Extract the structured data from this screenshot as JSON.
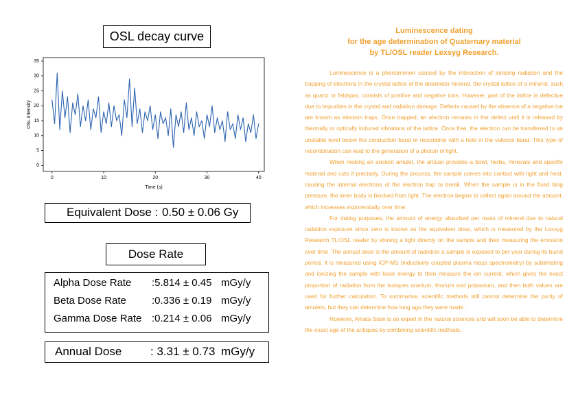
{
  "chart_data": {
    "type": "line",
    "title": "OSL decay curve",
    "xlabel": "Time (s)",
    "ylabel": "OSL Intensity",
    "color": "#2a62b0",
    "x": [
      0,
      0.5,
      1,
      1.5,
      2,
      2.5,
      3,
      3.5,
      4,
      4.5,
      5,
      5.5,
      6,
      6.5,
      7,
      7.5,
      8,
      8.5,
      9,
      9.5,
      10,
      10.5,
      11,
      11.5,
      12,
      12.5,
      13,
      13.5,
      14,
      14.5,
      15,
      15.5,
      16,
      16.5,
      17,
      17.5,
      18,
      18.5,
      19,
      19.5,
      20,
      20.5,
      21,
      21.5,
      22,
      22.5,
      23,
      23.5,
      24,
      24.5,
      25,
      25.5,
      26,
      26.5,
      27,
      27.5,
      28,
      28.5,
      29,
      29.5,
      30,
      30.5,
      31,
      31.5,
      32,
      32.5,
      33,
      33.5,
      34,
      34.5,
      35,
      35.5,
      36,
      36.5,
      37,
      37.5,
      38,
      38.5,
      39,
      39.5,
      40
    ],
    "values": [
      22,
      14,
      31,
      12,
      25,
      16,
      23,
      11,
      21,
      17,
      24,
      13,
      20,
      15,
      22,
      12,
      19,
      16,
      23,
      11,
      18,
      14,
      21,
      13,
      20,
      15,
      17,
      10,
      22,
      16,
      29,
      13,
      26,
      14,
      19,
      11,
      18,
      15,
      20,
      12,
      17,
      9,
      18,
      14,
      16,
      10,
      19,
      6,
      17,
      13,
      18,
      11,
      21,
      12,
      16,
      10,
      18,
      13,
      15,
      9,
      17,
      13,
      20,
      11,
      16,
      12,
      15,
      8,
      18,
      12,
      14,
      9,
      17,
      12,
      16,
      8,
      14,
      11,
      17,
      9,
      14
    ],
    "xlim": [
      -1.7,
      41.1
    ],
    "ylim": [
      -2,
      36.15
    ],
    "xticks": [
      0,
      10,
      20,
      30,
      40
    ],
    "yticks": [
      0,
      5,
      10,
      15,
      20,
      25,
      30,
      35
    ]
  },
  "equivalent_dose": {
    "label": "Equivalent Dose :",
    "value": "0.50 ± 0.06 Gy"
  },
  "dose_rate": {
    "title": "Dose Rate",
    "rows": [
      [
        "Alpha Dose Rate",
        ":5.814 ± 0.45",
        "mGy/y"
      ],
      [
        "Beta Dose Rate",
        ":0.336 ± 0.19",
        "mGy/y"
      ],
      [
        "Gamma Dose Rate",
        ":0.214 ± 0.06",
        "mGy/y"
      ]
    ]
  },
  "annual_dose": {
    "label": "Annual Dose",
    "value": ": 3.31 ± 0.73",
    "unit": "mGy/y"
  },
  "article": {
    "title": [
      "Luminescence dating",
      "for the age determination of Quaternary material",
      "by TL/OSL reader Lexsyg Research."
    ],
    "paragraphs": [
      "Luminescence is a phenomenon caused by the interaction of ionising radiation and the trapping of electrons in the crystal lattice of the dosimeter mineral. the crystal lattice of a mineral, such as quartz or feldspar, consists of positive and negative ions. However, part of the lattice is defective due to impurities in the crystal and radiation damage. Defects caused by the absence of a negative ion are known as electron traps. Once trapped, an electron remains in the defect until it is released by thermally or optically induced vibrations of the lattice. Once free, the electron can be transferred to an unstable level below the conduction band or recombine with a hole in the valence band. This type of recombination can lead to the generation of a photon of light.",
      "When making an ancient amulet, the artisan provides a bowl, herbs, minerals and specific material and cuts it precisely. During the process, the sample comes into contact with light and heat, causing the internal electrons of the electron trap to break. When the sample is in the fixed blog pressure, the inner body is blocked from light. The electron begins to collect again around the amount, which increases exponentially over time.",
      "For dating purposes, the amount of energy absorbed per mass of mineral due to natural radiation exposure since zero is known as the equivalent dose, which is measured by the Lexsyg Research TL/OSL reader by shining a light directly on the sample and then measuring the emission over time. The annual dose is the amount of radiation a sample is exposed to per year during its burial period. It is measured using ICP-MS (inductively coupled plasma mass spectrometry) by sublimating and ionizing the sample with laser energy to then measure the ion current, which gives the exact proportion of radiation from the isotopes uranium, thorium and potassium, and then both values are used for further calculation. To summarise, scientific methods still cannot determine the purity of amulets, but they can determine how long ago they were made.",
      "However, Amata Siam is an expert in the natural sciences and will soon be able to determine the exact age of the antiques by combining scientific methods."
    ]
  }
}
